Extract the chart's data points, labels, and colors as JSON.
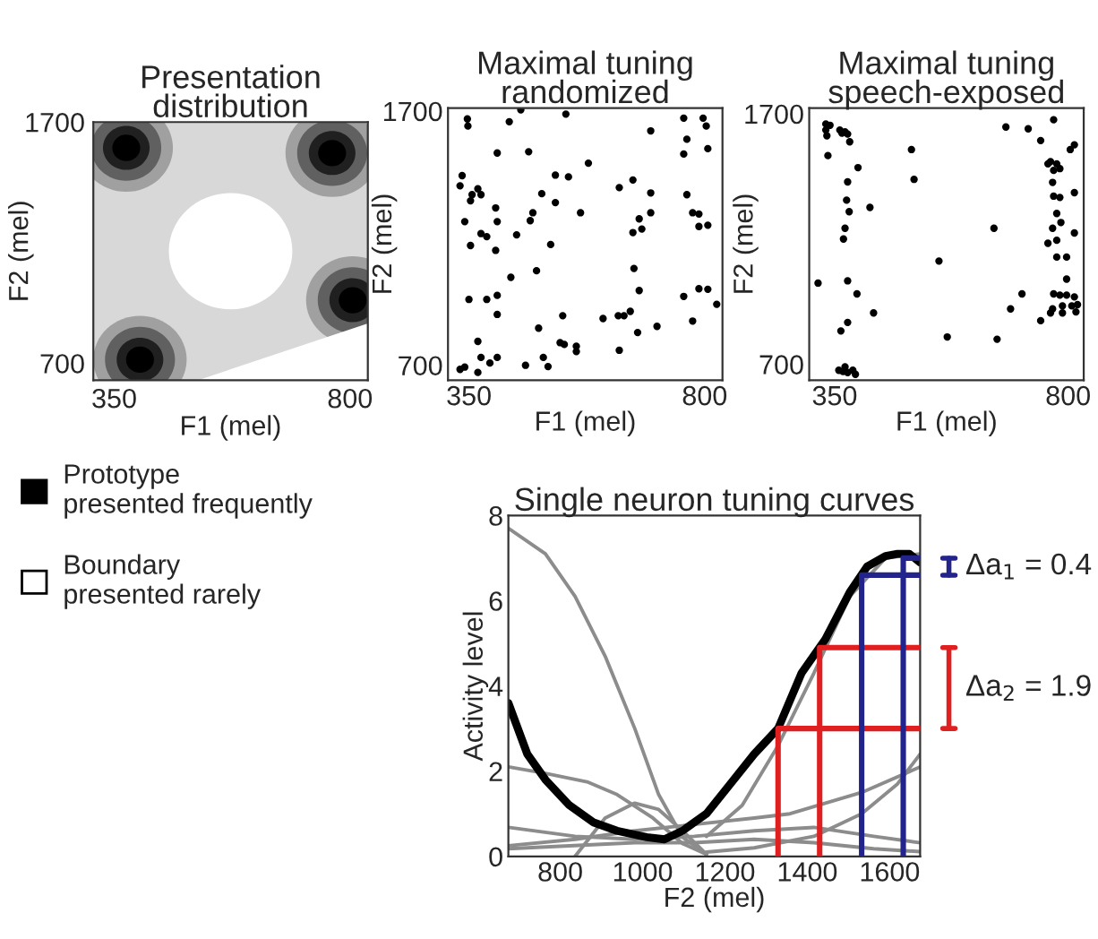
{
  "chart_data": [
    {
      "type": "other",
      "title": "Presentation distribution",
      "xlabel": "F1 (mel)",
      "ylabel": "F2 (mel)",
      "annotations": [
        "350",
        "800",
        "700",
        "1700"
      ],
      "legend": "bottom",
      "series": [
        {
          "name": "Prototype\npresented frequently",
          "color": "#000000"
        },
        {
          "name": "Boundary\npresented rarely",
          "color": "#ffffff"
        }
      ]
    },
    {
      "type": "scatter",
      "title": "Maximal tuning randomized",
      "xlabel": "F1 (mel)",
      "ylabel": "F2 (mel)",
      "xlim": [
        310,
        834
      ],
      "ylim": [
        641,
        1712
      ],
      "xticks": [
        350,
        800
      ],
      "yticks": [
        700,
        1700
      ],
      "marker": "circle",
      "series": [
        {
          "color": "#000000",
          "x": [
            347,
            348,
            449,
            427,
            535,
            760,
            797,
            803,
            697,
            766,
            404,
            760,
            806,
            464,
            578,
            515,
            540,
            337,
            333,
            367,
            373,
            356,
            353,
            637,
            663,
            489,
            515,
            697,
            766,
            401,
            563,
            472,
            342,
            404,
            467,
            441,
            373,
            384,
            353,
            401,
            506,
            675,
            697,
            680,
            663,
            777,
            789,
            806,
            789,
            430,
            479,
            665,
            675,
            350,
            384,
            404,
            404,
            529,
            606,
            635,
            646,
            658,
            672,
            709,
            760,
            789,
            806,
            823,
            777,
            483,
            367,
            373,
            404,
            390,
            524,
            532,
            555,
            555,
            637,
            492,
            501,
            458,
            342,
            333,
            367
          ],
          "values": [
            1669,
            1641,
            1705,
            1658,
            1688,
            1672,
            1672,
            1641,
            1622,
            1589,
            1535,
            1531,
            1552,
            1540,
            1495,
            1448,
            1441,
            1446,
            1406,
            1394,
            1371,
            1371,
            1347,
            1399,
            1429,
            1375,
            1340,
            1378,
            1371,
            1319,
            1300,
            1300,
            1265,
            1265,
            1269,
            1213,
            1218,
            1206,
            1171,
            1152,
            1175,
            1276,
            1300,
            1236,
            1222,
            1300,
            1295,
            1251,
            1246,
            1046,
            1072,
            1081,
            994,
            959,
            959,
            975,
            900,
            895,
            884,
            895,
            895,
            912,
            829,
            853,
            971,
            1001,
            999,
            940,
            874,
            846,
            794,
            731,
            731,
            709,
            789,
            782,
            775,
            754,
            759,
            731,
            695,
            700,
            693,
            684,
            672
          ]
        }
      ]
    },
    {
      "type": "scatter",
      "title": "Maximal tuning speech-exposed",
      "xlabel": "F1 (mel)",
      "ylabel": "F2 (mel)",
      "xlim": [
        301,
        830
      ],
      "ylim": [
        636,
        1723
      ],
      "xticks": [
        350,
        800
      ],
      "yticks": [
        700,
        1700
      ],
      "marker": "circle",
      "series": [
        {
          "color": "#000000",
          "x": [
            333,
            341,
            333,
            335,
            360,
            370,
            375,
            364,
            379,
            337,
            395,
            375,
            373,
            378,
            370,
            367,
            375,
            393,
            375,
            362,
            358,
            366,
            375,
            385,
            370,
            390,
            318,
            418,
            425,
            498,
            503,
            551,
            567,
            663,
            657,
            689,
            711,
            680,
            723,
            772,
            747,
            804,
            812,
            766,
            778,
            784,
            761,
            772,
            770,
            772,
            784,
            812,
            786,
            770,
            761,
            778,
            778,
            797,
            812,
            797,
            772,
            784,
            797,
            812,
            818,
            807,
            789,
            770,
            747,
            766,
            789,
            815,
            778
          ],
          "values": [
            1659,
            1654,
            1635,
            1612,
            1635,
            1628,
            1619,
            1623,
            1588,
            1533,
            1485,
            1428,
            1355,
            1309,
            1243,
            1200,
            1033,
            981,
            867,
            833,
            676,
            671,
            667,
            676,
            690,
            660,
            1024,
            1326,
            905,
            1557,
            1438,
            1112,
            809,
            800,
            1243,
            921,
            981,
            1647,
            1640,
            1676,
            1593,
            1557,
            1576,
            1509,
            1500,
            1481,
            1500,
            1474,
            1426,
            1371,
            1366,
            1385,
            1266,
            1243,
            1183,
            1195,
            1128,
            1128,
            1224,
            1040,
            981,
            976,
            976,
            969,
            938,
            933,
            933,
            921,
            874,
            905,
            905,
            909,
            1302
          ]
        }
      ]
    },
    {
      "type": "line",
      "title": "Single neuron tuning curves",
      "xlabel": "F2 (mel)",
      "ylabel": "Activity level",
      "xlim": [
        674,
        1674
      ],
      "ylim": [
        0,
        8
      ],
      "xticks": [
        800,
        1000,
        1200,
        1400,
        1600
      ],
      "yticks": [
        0,
        2,
        4,
        6,
        8
      ],
      "line_style": "solid",
      "series": [
        {
          "color": "#8c8c8c",
          "x": [
            674,
            764,
            836,
            909,
            981,
            1039,
            1097,
            1155
          ],
          "values": [
            7.7,
            7.1,
            6.1,
            4.7,
            3.0,
            1.45,
            0.45,
            0.05
          ]
        },
        {
          "color": "#8c8c8c",
          "x": [
            674,
            764,
            865,
            938,
            1025,
            1097,
            1155
          ],
          "values": [
            2.1,
            1.95,
            1.75,
            1.45,
            0.9,
            0.3,
            0.05
          ]
        },
        {
          "color": "#8c8c8c",
          "x": [
            836,
            909,
            981,
            1039,
            1097,
            1155
          ],
          "values": [
            0,
            0.9,
            1.25,
            1.1,
            0.6,
            0.05
          ]
        },
        {
          "color": "#8c8c8c",
          "x": [
            674,
            836,
            981,
            1126,
            1271,
            1416,
            1561,
            1674
          ],
          "values": [
            0.68,
            0.47,
            0.4,
            0.47,
            0.6,
            0.68,
            0.47,
            0.32
          ]
        },
        {
          "color": "#8c8c8c",
          "x": [
            674,
            836,
            981,
            1126,
            1271,
            1358,
            1532,
            1674
          ],
          "values": [
            0.25,
            0.4,
            0.6,
            0.75,
            0.9,
            1.0,
            1.5,
            2.1
          ]
        },
        {
          "color": "#8c8c8c",
          "x": [
            1155,
            1271,
            1416,
            1532,
            1619,
            1674
          ],
          "values": [
            0.1,
            0.2,
            0.47,
            1.0,
            1.7,
            2.4
          ]
        },
        {
          "color": "#8c8c8c",
          "x": [
            1155,
            1242,
            1329,
            1416,
            1503,
            1590,
            1674
          ],
          "values": [
            0.47,
            1.2,
            2.6,
            4.3,
            6.1,
            7.0,
            7.1
          ]
        },
        {
          "color": "#8c8c8c",
          "x": [
            674,
            981,
            1126,
            1271,
            1416,
            1561,
            1674
          ],
          "values": [
            0.18,
            0.32,
            0.32,
            0.4,
            0.32,
            0.18,
            0.11
          ]
        },
        {
          "color": "#000000",
          "x": [
            674,
            720,
            764,
            822,
            880,
            938,
            1010,
            1053,
            1097,
            1155,
            1213,
            1271,
            1329,
            1386,
            1444,
            1503,
            1545,
            1590,
            1619,
            1648,
            1674
          ],
          "values": [
            3.6,
            2.4,
            1.8,
            1.2,
            0.8,
            0.6,
            0.45,
            0.4,
            0.6,
            1.0,
            1.7,
            2.4,
            3.0,
            4.3,
            5.1,
            6.2,
            6.8,
            7.05,
            7.1,
            7.1,
            6.9
          ]
        },
        {
          "color": "#e02020",
          "x": [
            1329,
            1329,
            1674
          ],
          "values": [
            0,
            3.0,
            3.0
          ]
        },
        {
          "color": "#e02020",
          "x": [
            1430,
            1430,
            1674
          ],
          "values": [
            0,
            4.9,
            4.9
          ]
        },
        {
          "color": "#23238c",
          "x": [
            1532,
            1532,
            1674
          ],
          "values": [
            0,
            6.6,
            6.6
          ]
        },
        {
          "color": "#23238c",
          "x": [
            1633,
            1633,
            1674
          ],
          "values": [
            0,
            7.0,
            7.0
          ]
        }
      ],
      "annotations": [
        "Δa$_{1}$ = 0.4",
        "Δa$_{2}$ = 1.9"
      ]
    }
  ]
}
